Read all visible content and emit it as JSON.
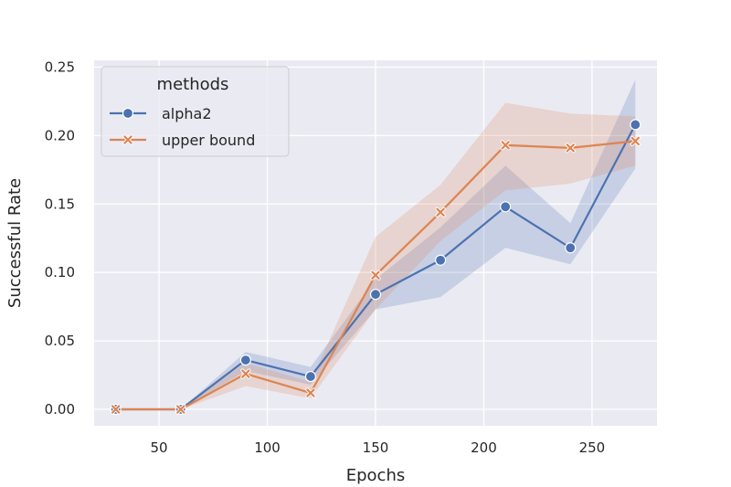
{
  "chart_data": {
    "type": "line",
    "xlabel": "Epochs",
    "ylabel": "Successful Rate",
    "xlim": [
      20,
      280
    ],
    "ylim": [
      -0.012,
      0.255
    ],
    "x_ticks": [
      50,
      100,
      150,
      200,
      250
    ],
    "y_ticks": [
      0.0,
      0.05,
      0.1,
      0.15,
      0.2,
      0.25
    ],
    "x_tick_labels": [
      "50",
      "100",
      "150",
      "200",
      "250"
    ],
    "y_tick_labels": [
      "0.00",
      "0.05",
      "0.10",
      "0.15",
      "0.20",
      "0.25"
    ],
    "grid": true,
    "legend": {
      "title": "methods",
      "position": "top-left"
    },
    "series": [
      {
        "name": "alpha2",
        "color": "#4c72b0",
        "marker": "circle",
        "x": [
          30,
          60,
          90,
          120,
          150,
          180,
          210,
          240,
          270
        ],
        "y": [
          0.0,
          0.0,
          0.036,
          0.024,
          0.084,
          0.109,
          0.148,
          0.118,
          0.208
        ],
        "lower": [
          0.0,
          0.0,
          0.028,
          0.018,
          0.073,
          0.082,
          0.118,
          0.106,
          0.176
        ],
        "upper": [
          0.0,
          0.0,
          0.042,
          0.031,
          0.095,
          0.133,
          0.178,
          0.136,
          0.241
        ]
      },
      {
        "name": "upper bound",
        "color": "#dd8452",
        "marker": "x",
        "x": [
          30,
          60,
          90,
          120,
          150,
          180,
          210,
          240,
          270
        ],
        "y": [
          0.0,
          0.0,
          0.026,
          0.012,
          0.098,
          0.144,
          0.193,
          0.191,
          0.196
        ],
        "lower": [
          0.0,
          0.0,
          0.017,
          0.008,
          0.073,
          0.123,
          0.16,
          0.165,
          0.178
        ],
        "upper": [
          0.0,
          0.0,
          0.034,
          0.02,
          0.126,
          0.164,
          0.224,
          0.216,
          0.214
        ]
      }
    ]
  }
}
